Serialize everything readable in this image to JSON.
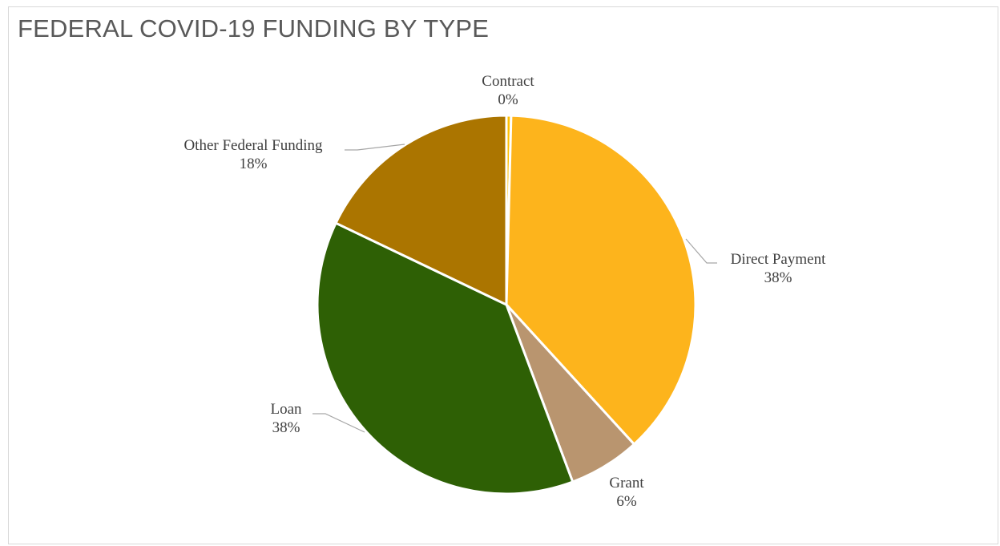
{
  "chart_data": {
    "type": "pie",
    "title": "FEDERAL COVID-19 FUNDING BY TYPE",
    "slices": [
      {
        "label": "Contract",
        "pct_label": "0%",
        "value": 0.4,
        "color": "#ffc000"
      },
      {
        "label": "Direct Payment",
        "pct_label": "38%",
        "value": 37.8,
        "color": "#fdb41c"
      },
      {
        "label": "Grant",
        "pct_label": "6%",
        "value": 6.1,
        "color": "#b9956f"
      },
      {
        "label": "Loan",
        "pct_label": "38%",
        "value": 37.8,
        "color": "#2e6005"
      },
      {
        "label": "Other Federal Funding",
        "pct_label": "18%",
        "value": 17.9,
        "color": "#ab7500"
      }
    ],
    "legend": "none"
  }
}
